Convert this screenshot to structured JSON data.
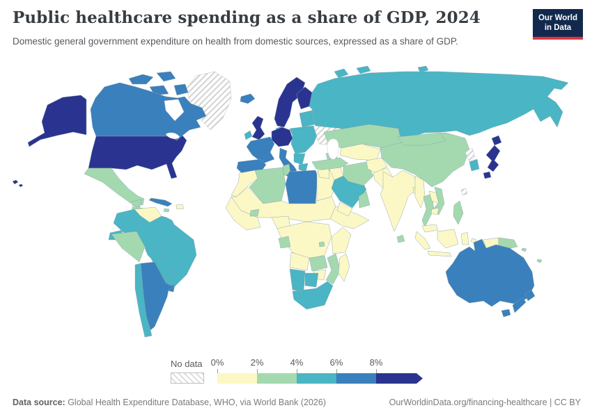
{
  "header": {
    "title": "Public healthcare spending as a share of GDP, 2024",
    "subtitle": "Domestic general government expenditure on health from domestic sources, expressed as a share of GDP."
  },
  "logo": {
    "line1": "Our World",
    "line2": "in Data",
    "bg_color": "#12294d",
    "stripe_color": "#e0343d"
  },
  "legend": {
    "no_data_label": "No data",
    "ticks": [
      "0%",
      "2%",
      "4%",
      "6%",
      "8%"
    ],
    "buckets": [
      {
        "id": "0-2",
        "color": "#fbf8c5"
      },
      {
        "id": "2-4",
        "color": "#a4d9b0"
      },
      {
        "id": "4-6",
        "color": "#4ab5c4"
      },
      {
        "id": "6-8",
        "color": "#3a80bc"
      },
      {
        "id": "8+",
        "color": "#2a3490"
      }
    ]
  },
  "footer": {
    "source_label": "Data source:",
    "source_text": " Global Health Expenditure Database, WHO, via World Bank (2026)",
    "link_text": "OurWorldinData.org/financing-healthcare | CC BY"
  },
  "map": {
    "ocean_color": "#ffffff",
    "border_color": "#8ba2ad",
    "bucket_colors": {
      "0-2": "#fbf8c5",
      "2-4": "#a4d9b0",
      "4-6": "#4ab5c4",
      "6-8": "#3a80bc",
      "8+": "#2a3490",
      "no-data": "hatch"
    },
    "regions": {
      "usa": "8+",
      "alaska": "8+",
      "hawaii": "8+",
      "canada": "6-8",
      "greenland": "no-data",
      "mexico": "2-4",
      "guatemala": "2-4",
      "honduras": "2-4",
      "nicaragua": "4-6",
      "costa-rica": "4-6",
      "panama": "4-6",
      "cuba": "6-8",
      "hispaniola": "0-2",
      "jamaica": "2-4",
      "colombia": "4-6",
      "venezuela": "0-2",
      "guyana": "2-4",
      "suriname": "no-data",
      "ecuador": "4-6",
      "peru": "2-4",
      "brazil": "4-6",
      "bolivia": "4-6",
      "paraguay": "4-6",
      "uruguay": "6-8",
      "argentina": "6-8",
      "chile": "4-6",
      "iceland": "6-8",
      "uk": "8+",
      "ireland": "4-6",
      "norway-sweden": "8+",
      "finland": "8+",
      "denmark": "4-6",
      "germany": "8+",
      "france": "6-8",
      "iberia": "6-8",
      "italy": "6-8",
      "sicily": "6-8",
      "east-europe": "4-6",
      "balkans": "4-6",
      "greece": "4-6",
      "baltics": "4-6",
      "ukraine": "no-data",
      "turkey": "2-4",
      "russia": "4-6",
      "morocco": "0-2",
      "algeria": "2-4",
      "tunisia": "2-4",
      "libya": "6-8",
      "egypt": "0-2",
      "sahel": "0-2",
      "west-africa": "0-2",
      "burkina-faso": "2-4",
      "nigeria": "0-2",
      "horn-of-africa": "0-2",
      "central-africa": "0-2",
      "gabon": "2-4",
      "rwanda": "2-4",
      "east-africa": "0-2",
      "angola": "0-2",
      "zambia": "2-4",
      "mozambique": "2-4",
      "zimbabwe": "0-2",
      "namibia": "4-6",
      "botswana": "4-6",
      "south-africa": "4-6",
      "madagascar": "0-2",
      "syria-jordan": "0-2",
      "iraq": "0-2",
      "saudi-arabia": "4-6",
      "yemen": "0-2",
      "oman": "2-4",
      "iran": "2-4",
      "caucasus": "2-4",
      "kazakhstan": "2-4",
      "central-asia": "0-2",
      "afghanistan": "0-2",
      "pakistan": "0-2",
      "india": "0-2",
      "sri-lanka": "2-4",
      "bangladesh": "0-2",
      "china": "2-4",
      "mongolia": "2-4",
      "myanmar": "0-2",
      "thailand": "2-4",
      "laos": "0-2",
      "vietnam": "2-4",
      "cambodia": "0-2",
      "malaysia": "0-2",
      "sumatra": "0-2",
      "java": "0-2",
      "borneo": "0-2",
      "sulawesi": "0-2",
      "moluccas": "0-2",
      "philippines": "2-4",
      "taiwan": "no-data",
      "north-korea": "no-data",
      "south-korea": "4-6",
      "japan": "8+",
      "west-papua": "0-2",
      "papua-new-guinea": "2-4",
      "solomon": "2-4",
      "fiji": "2-4",
      "new-caledonia": "2-4",
      "australia": "6-8",
      "tasmania": "6-8",
      "new-zealand": "6-8"
    }
  },
  "chart_data": {
    "type": "choropleth",
    "title": "Public healthcare spending as a share of GDP, 2024",
    "unit": "% of GDP",
    "bins": [
      "0-2%",
      "2-4%",
      "4-6%",
      "6-8%",
      "8%+",
      "No data"
    ],
    "bin_colors": [
      "#fbf8c5",
      "#a4d9b0",
      "#4ab5c4",
      "#3a80bc",
      "#2a3490",
      "white-diagonal-hatch"
    ],
    "regions_by_bin": {
      "8%+": [
        "United States",
        "United Kingdom",
        "Norway",
        "Sweden",
        "Finland",
        "Germany",
        "Benelux",
        "Austria",
        "Japan"
      ],
      "6-8%": [
        "Canada",
        "France",
        "Spain",
        "Portugal",
        "Italy",
        "Iceland",
        "Cuba",
        "Argentina",
        "Uruguay",
        "Libya",
        "Australia",
        "New Zealand"
      ],
      "4-6%": [
        "Russia",
        "Ireland",
        "Denmark",
        "Poland and Eastern Europe",
        "Balkans",
        "Greece",
        "Baltics",
        "Colombia",
        "Ecuador",
        "Brazil",
        "Bolivia",
        "Paraguay",
        "Chile",
        "Nicaragua",
        "Costa Rica",
        "Panama",
        "Saudi Arabia",
        "South Africa",
        "Namibia",
        "Botswana",
        "South Korea"
      ],
      "2-4%": [
        "Mexico",
        "Guatemala",
        "Honduras",
        "Peru",
        "Guyana",
        "Turkey",
        "Iran",
        "Kazakhstan",
        "China",
        "Mongolia",
        "Thailand",
        "Vietnam",
        "Philippines",
        "Sri Lanka",
        "Oman",
        "Algeria",
        "Tunisia",
        "Burkina Faso",
        "Gabon",
        "Rwanda",
        "Zambia",
        "Mozambique",
        "Papua New Guinea",
        "Fiji"
      ],
      "0-2%": [
        "Venezuela",
        "Haiti",
        "Morocco",
        "Sahel countries",
        "West Africa",
        "Nigeria",
        "Egypt",
        "Horn of Africa",
        "Central Africa",
        "East Africa",
        "Angola",
        "Zimbabwe",
        "Madagascar",
        "Syria",
        "Jordan",
        "Iraq",
        "Yemen",
        "Central Asia",
        "Afghanistan",
        "Pakistan",
        "India",
        "Bangladesh",
        "Myanmar",
        "Laos",
        "Cambodia",
        "Malaysia",
        "Indonesia"
      ],
      "No data": [
        "Greenland",
        "Ukraine",
        "Suriname",
        "North Korea",
        "Taiwan"
      ]
    }
  }
}
